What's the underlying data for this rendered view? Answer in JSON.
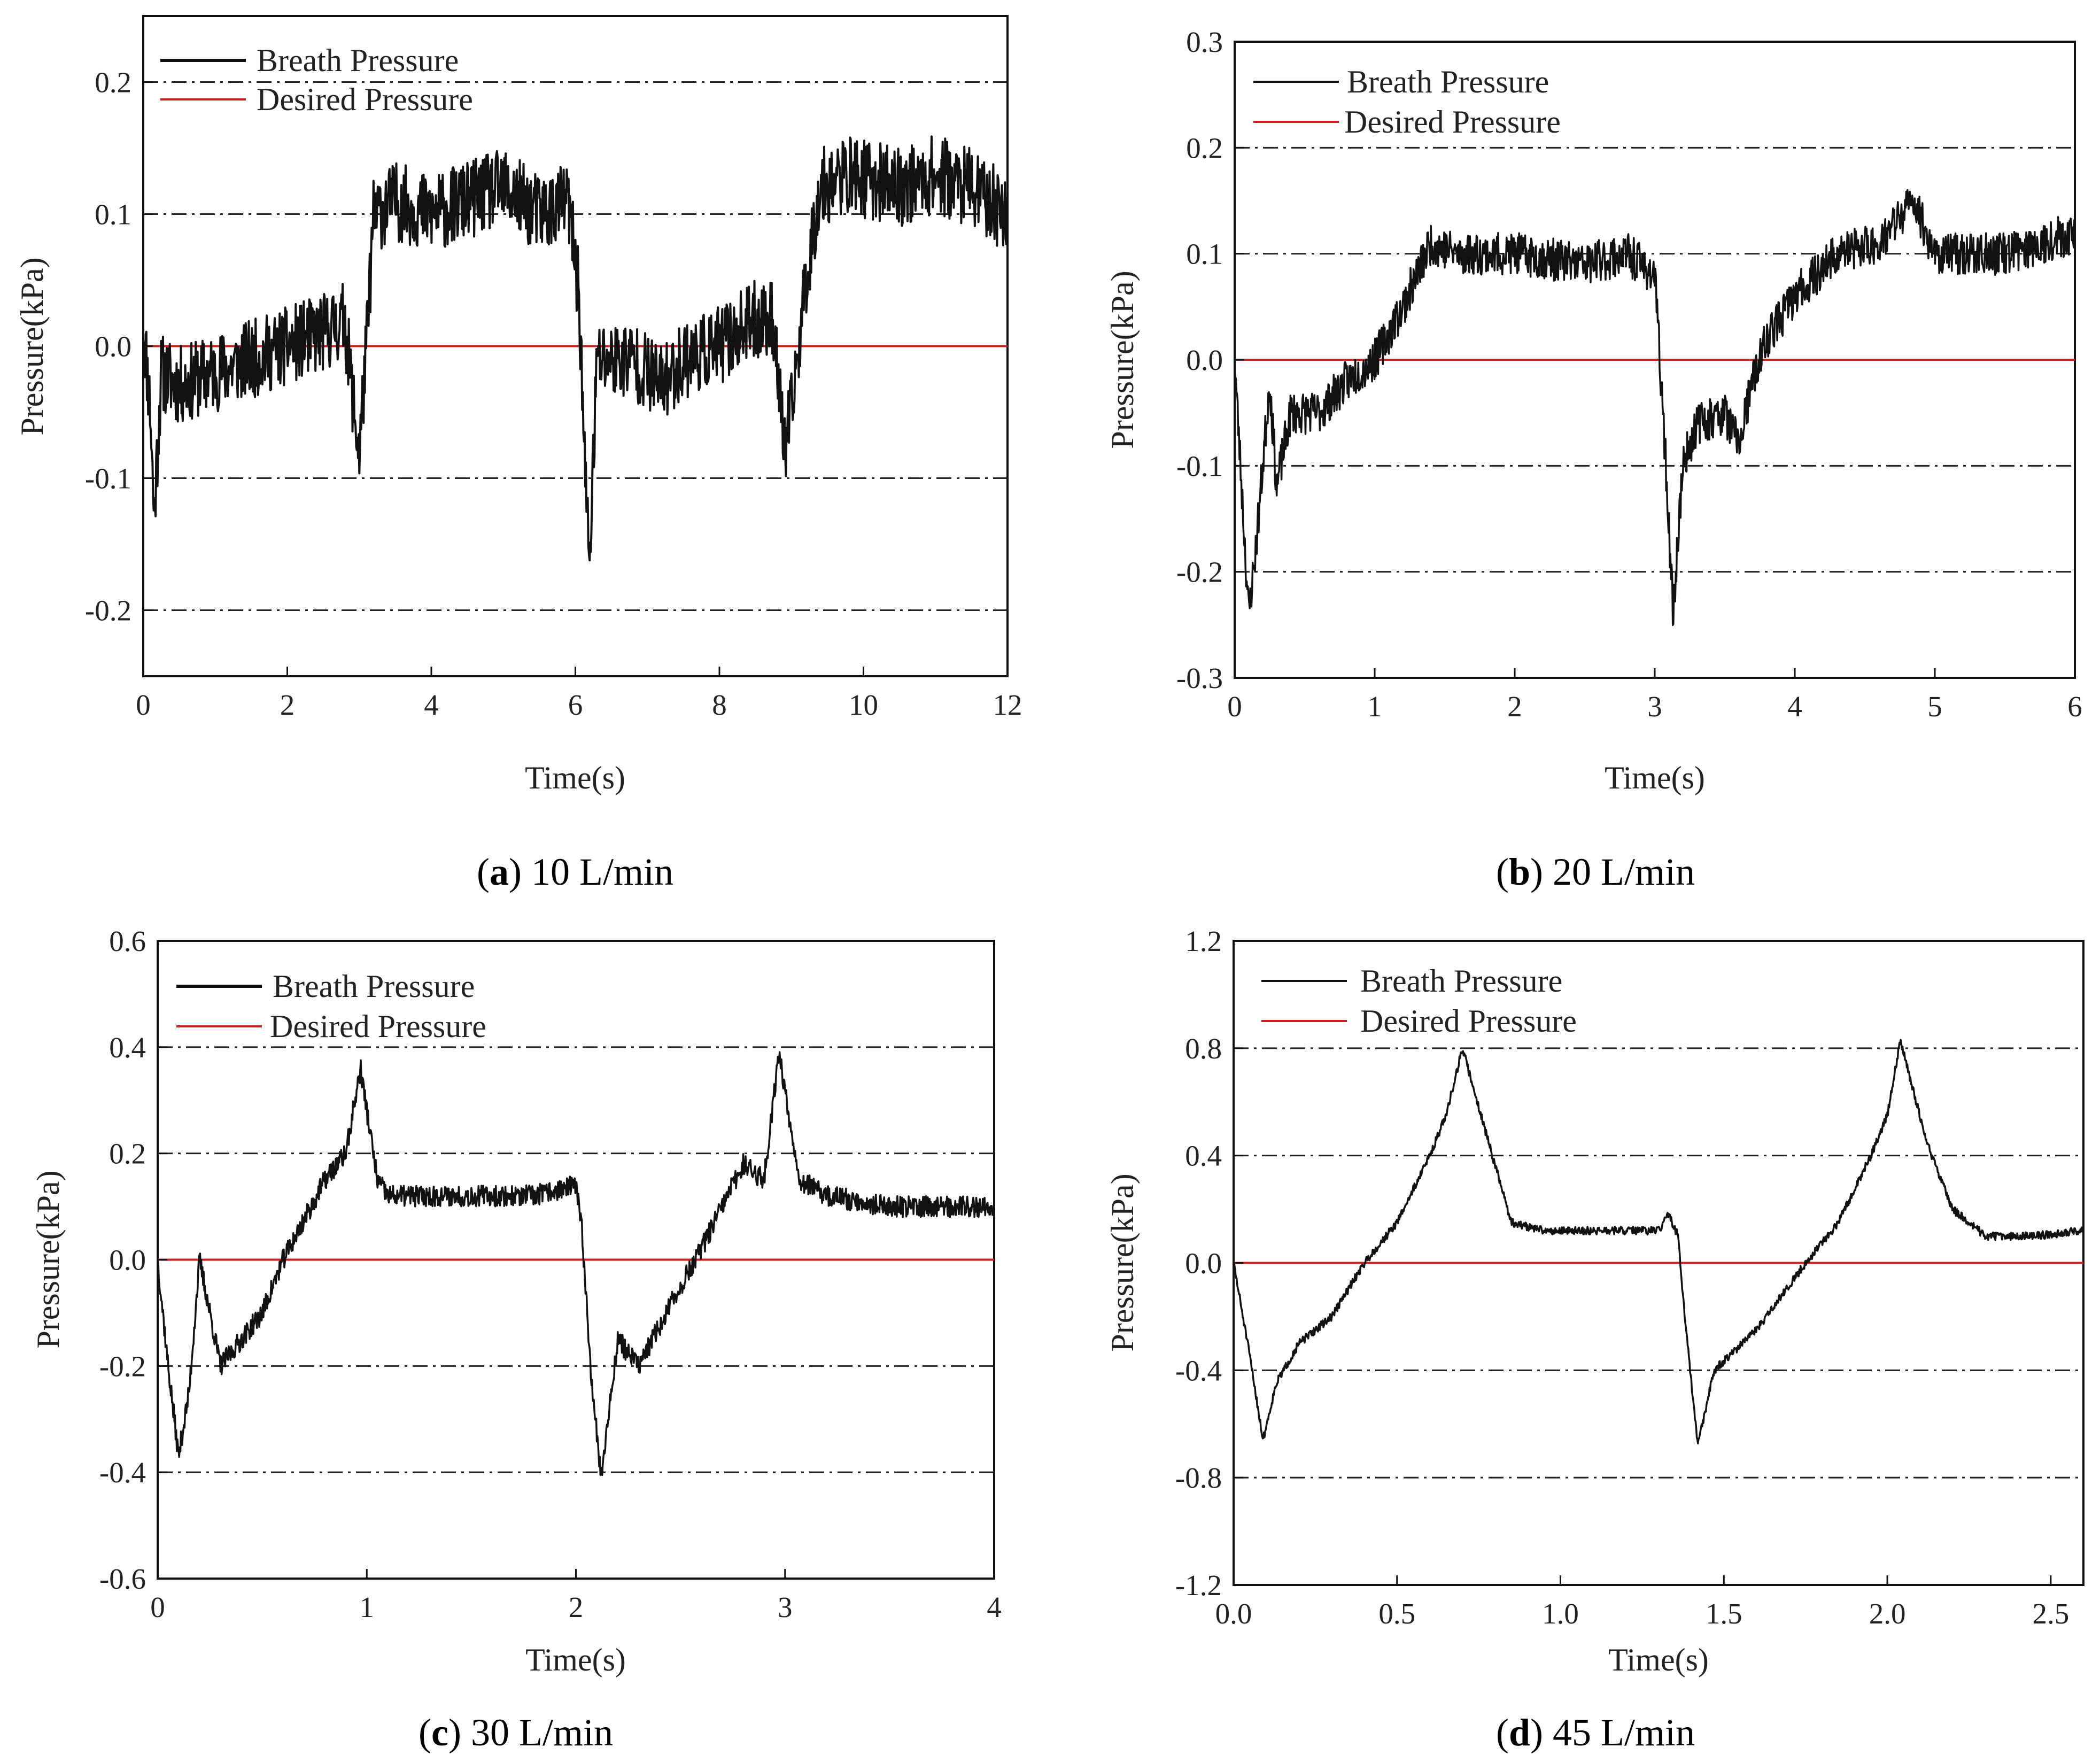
{
  "figure": {
    "colors": {
      "breath": "#111111",
      "desired": "#cc2020",
      "grid": "#222222"
    }
  },
  "chart_data": [
    {
      "id": "a",
      "type": "line",
      "caption_letter": "a",
      "caption_rest": " 10 L/min",
      "xlabel": "Time(s)",
      "ylabel": "Pressure(kPa)",
      "xlim": [
        0,
        12
      ],
      "ylim": [
        -0.25,
        0.25
      ],
      "xticks": [
        0,
        2,
        4,
        6,
        8,
        10,
        12
      ],
      "xtick_labels": [
        "0",
        "2",
        "4",
        "6",
        "8",
        "10",
        "12"
      ],
      "yticks": [
        -0.2,
        -0.1,
        0.0,
        0.1,
        0.2
      ],
      "ytick_labels": [
        "-0.2",
        "-0.1",
        "0.0",
        "0.1",
        "0.2"
      ],
      "gridlines_y": [
        -0.2,
        -0.1,
        0.1,
        0.2
      ],
      "desired": 0.0,
      "noise": 0.03,
      "seed": 11,
      "series": [
        {
          "name": "Breath Pressure",
          "points": [
            [
              0,
              0.02
            ],
            [
              0.1,
              -0.05
            ],
            [
              0.15,
              -0.13
            ],
            [
              0.25,
              -0.02
            ],
            [
              0.5,
              -0.03
            ],
            [
              1.0,
              -0.02
            ],
            [
              1.5,
              -0.01
            ],
            [
              2.0,
              0.0
            ],
            [
              2.5,
              0.01
            ],
            [
              2.8,
              0.02
            ],
            [
              2.95,
              -0.06
            ],
            [
              3.0,
              -0.08
            ],
            [
              3.1,
              0.0
            ],
            [
              3.2,
              0.1
            ],
            [
              3.5,
              0.11
            ],
            [
              4.0,
              0.1
            ],
            [
              4.5,
              0.11
            ],
            [
              5.0,
              0.12
            ],
            [
              5.5,
              0.1
            ],
            [
              5.9,
              0.11
            ],
            [
              6.05,
              0.04
            ],
            [
              6.15,
              -0.12
            ],
            [
              6.2,
              -0.16
            ],
            [
              6.3,
              -0.01
            ],
            [
              6.8,
              -0.01
            ],
            [
              7.2,
              -0.03
            ],
            [
              7.5,
              -0.01
            ],
            [
              8.0,
              0.0
            ],
            [
              8.5,
              0.02
            ],
            [
              8.75,
              0.02
            ],
            [
              8.9,
              -0.08
            ],
            [
              9.0,
              -0.05
            ],
            [
              9.2,
              0.05
            ],
            [
              9.4,
              0.12
            ],
            [
              9.8,
              0.13
            ],
            [
              10.5,
              0.12
            ],
            [
              11.0,
              0.13
            ],
            [
              11.5,
              0.12
            ],
            [
              12.0,
              0.1
            ]
          ]
        },
        {
          "name": "Desired Pressure"
        }
      ]
    },
    {
      "id": "b",
      "type": "line",
      "caption_letter": "b",
      "caption_rest": " 20 L/min",
      "xlabel": "Time(s)",
      "ylabel": "Pressure(kPa)",
      "xlim": [
        0,
        6
      ],
      "ylim": [
        -0.3,
        0.3
      ],
      "xticks": [
        0,
        1,
        2,
        3,
        4,
        5,
        6
      ],
      "xtick_labels": [
        "0",
        "1",
        "2",
        "3",
        "4",
        "5",
        "6"
      ],
      "yticks": [
        -0.3,
        -0.2,
        -0.1,
        0.0,
        0.1,
        0.2,
        0.3
      ],
      "ytick_labels": [
        "-0.3",
        "-0.2",
        "-0.1",
        "0.0",
        "0.1",
        "0.2",
        "0.3"
      ],
      "gridlines_y": [
        -0.2,
        -0.1,
        0.1,
        0.2
      ],
      "desired": 0.0,
      "noise": 0.02,
      "seed": 23,
      "series": [
        {
          "name": "Breath Pressure",
          "points": [
            [
              0,
              0.0
            ],
            [
              0.05,
              -0.12
            ],
            [
              0.1,
              -0.24
            ],
            [
              0.15,
              -0.18
            ],
            [
              0.25,
              -0.02
            ],
            [
              0.3,
              -0.12
            ],
            [
              0.4,
              -0.05
            ],
            [
              0.6,
              -0.05
            ],
            [
              0.8,
              -0.02
            ],
            [
              1.0,
              0.0
            ],
            [
              1.2,
              0.05
            ],
            [
              1.4,
              0.11
            ],
            [
              1.6,
              0.1
            ],
            [
              2.0,
              0.1
            ],
            [
              2.5,
              0.09
            ],
            [
              2.8,
              0.1
            ],
            [
              3.0,
              0.08
            ],
            [
              3.08,
              -0.1
            ],
            [
              3.13,
              -0.24
            ],
            [
              3.2,
              -0.1
            ],
            [
              3.3,
              -0.06
            ],
            [
              3.5,
              -0.05
            ],
            [
              3.6,
              -0.08
            ],
            [
              3.7,
              -0.02
            ],
            [
              3.8,
              0.02
            ],
            [
              4.0,
              0.06
            ],
            [
              4.3,
              0.1
            ],
            [
              4.6,
              0.11
            ],
            [
              4.85,
              0.15
            ],
            [
              5.0,
              0.1
            ],
            [
              5.5,
              0.1
            ],
            [
              6.0,
              0.12
            ]
          ]
        },
        {
          "name": "Desired Pressure"
        }
      ]
    },
    {
      "id": "c",
      "type": "line",
      "caption_letter": "c",
      "caption_rest": " 30 L/min",
      "xlabel": "Time(s)",
      "ylabel": "Pressure(kPa)",
      "xlim": [
        0,
        4
      ],
      "ylim": [
        -0.6,
        0.6
      ],
      "xticks": [
        0,
        1,
        2,
        3,
        4
      ],
      "xtick_labels": [
        "0",
        "1",
        "2",
        "3",
        "4"
      ],
      "yticks": [
        -0.6,
        -0.4,
        -0.2,
        0.0,
        0.2,
        0.4,
        0.6
      ],
      "ytick_labels": [
        "-0.6",
        "-0.4",
        "-0.2",
        "0.0",
        "0.2",
        "0.4",
        "0.6"
      ],
      "gridlines_y": [
        -0.4,
        -0.2,
        0.2,
        0.4
      ],
      "desired": 0.0,
      "noise": 0.02,
      "seed": 37,
      "series": [
        {
          "name": "Breath Pressure",
          "points": [
            [
              0,
              0.0
            ],
            [
              0.05,
              -0.2
            ],
            [
              0.1,
              -0.37
            ],
            [
              0.15,
              -0.25
            ],
            [
              0.2,
              0.0
            ],
            [
              0.3,
              -0.2
            ],
            [
              0.5,
              -0.1
            ],
            [
              0.6,
              0.0
            ],
            [
              0.8,
              0.15
            ],
            [
              0.9,
              0.2
            ],
            [
              0.97,
              0.36
            ],
            [
              1.05,
              0.15
            ],
            [
              1.1,
              0.12
            ],
            [
              1.3,
              0.12
            ],
            [
              1.5,
              0.12
            ],
            [
              1.8,
              0.12
            ],
            [
              2.0,
              0.14
            ],
            [
              2.03,
              0.05
            ],
            [
              2.07,
              -0.2
            ],
            [
              2.12,
              -0.41
            ],
            [
              2.2,
              -0.15
            ],
            [
              2.3,
              -0.2
            ],
            [
              2.5,
              -0.05
            ],
            [
              2.6,
              0.02
            ],
            [
              2.8,
              0.18
            ],
            [
              2.9,
              0.15
            ],
            [
              2.97,
              0.39
            ],
            [
              3.07,
              0.15
            ],
            [
              3.2,
              0.12
            ],
            [
              3.5,
              0.1
            ],
            [
              3.8,
              0.1
            ],
            [
              4.0,
              0.1
            ]
          ]
        },
        {
          "name": "Desired Pressure"
        }
      ]
    },
    {
      "id": "d",
      "type": "line",
      "caption_letter": "d",
      "caption_rest": " 45 L/min",
      "xlabel": "Time(s)",
      "ylabel": "Pressure(kPa)",
      "xlim": [
        0,
        2.6
      ],
      "ylim": [
        -1.2,
        1.2
      ],
      "xticks": [
        0.0,
        0.5,
        1.0,
        1.5,
        2.0,
        2.5
      ],
      "xtick_labels": [
        "0.0",
        "0.5",
        "1.0",
        "1.5",
        "2.0",
        "2.5"
      ],
      "yticks": [
        -1.2,
        -0.8,
        -0.4,
        0.0,
        0.4,
        0.8,
        1.2
      ],
      "ytick_labels": [
        "-1.2",
        "-0.8",
        "-0.4",
        "0.0",
        "0.4",
        "0.8",
        "1.2"
      ],
      "gridlines_y": [
        -0.8,
        -0.4,
        0.4,
        0.8
      ],
      "desired": 0.0,
      "noise": 0.015,
      "seed": 51,
      "series": [
        {
          "name": "Breath Pressure",
          "points": [
            [
              0,
              0.0
            ],
            [
              0.05,
              -0.35
            ],
            [
              0.09,
              -0.66
            ],
            [
              0.13,
              -0.45
            ],
            [
              0.2,
              -0.3
            ],
            [
              0.3,
              -0.2
            ],
            [
              0.4,
              0.0
            ],
            [
              0.5,
              0.15
            ],
            [
              0.6,
              0.4
            ],
            [
              0.65,
              0.55
            ],
            [
              0.7,
              0.8
            ],
            [
              0.78,
              0.45
            ],
            [
              0.85,
              0.15
            ],
            [
              0.95,
              0.12
            ],
            [
              1.1,
              0.12
            ],
            [
              1.3,
              0.12
            ],
            [
              1.33,
              0.18
            ],
            [
              1.36,
              0.1
            ],
            [
              1.38,
              -0.2
            ],
            [
              1.42,
              -0.68
            ],
            [
              1.47,
              -0.4
            ],
            [
              1.6,
              -0.25
            ],
            [
              1.75,
              0.0
            ],
            [
              1.85,
              0.15
            ],
            [
              1.95,
              0.4
            ],
            [
              2.0,
              0.55
            ],
            [
              2.04,
              0.83
            ],
            [
              2.12,
              0.45
            ],
            [
              2.2,
              0.2
            ],
            [
              2.3,
              0.1
            ],
            [
              2.45,
              0.1
            ],
            [
              2.6,
              0.12
            ]
          ]
        },
        {
          "name": "Desired Pressure"
        }
      ]
    }
  ]
}
